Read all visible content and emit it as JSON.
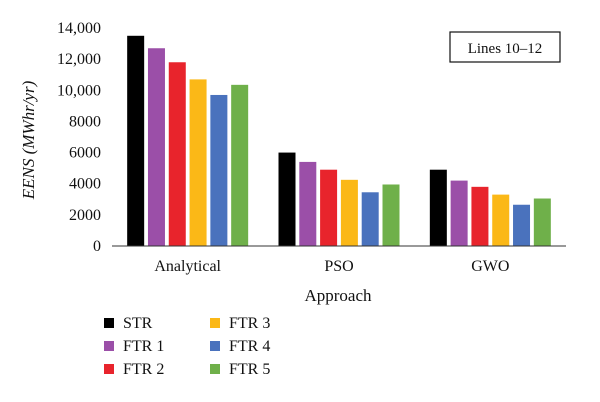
{
  "chart_data": {
    "type": "bar",
    "categories": [
      "Analytical",
      "PSO",
      "GWO"
    ],
    "series": [
      {
        "name": "STR",
        "color": "#000000",
        "values": [
          13500,
          6000,
          4900
        ]
      },
      {
        "name": "FTR 1",
        "color": "#9b4fa8",
        "values": [
          12700,
          5400,
          4200
        ]
      },
      {
        "name": "FTR 2",
        "color": "#e8242c",
        "values": [
          11800,
          4900,
          3800
        ]
      },
      {
        "name": "FTR 3",
        "color": "#fbb817",
        "values": [
          10700,
          4250,
          3300
        ]
      },
      {
        "name": "FTR 4",
        "color": "#4a72bd",
        "values": [
          9700,
          3450,
          2650
        ]
      },
      {
        "name": "FTR 5",
        "color": "#6fb04a",
        "values": [
          10350,
          3950,
          3050
        ]
      }
    ],
    "xlabel": "Approach",
    "ylabel": "EENS (MWhr/yr)",
    "ylim": [
      0,
      14000
    ],
    "yticks": [
      {
        "value": 0,
        "label": "0"
      },
      {
        "value": 2000,
        "label": "2000"
      },
      {
        "value": 4000,
        "label": "4000"
      },
      {
        "value": 6000,
        "label": "6000"
      },
      {
        "value": 8000,
        "label": "8000"
      },
      {
        "value": 10000,
        "label": "10,000"
      },
      {
        "value": 12000,
        "label": "12,000"
      },
      {
        "value": 14000,
        "label": "14,000"
      }
    ],
    "annotation": "Lines 10–12",
    "grid": false,
    "legend_position": "bottom-left"
  }
}
